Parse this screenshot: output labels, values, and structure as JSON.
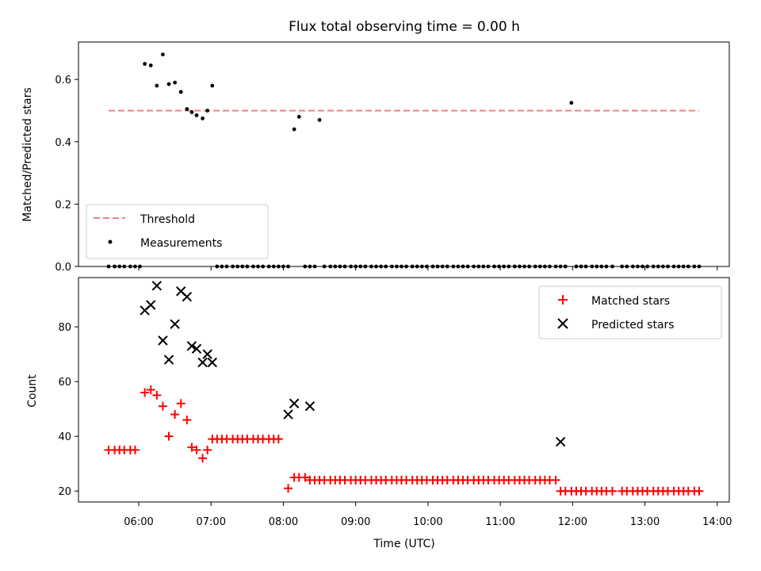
{
  "chart_data": [
    {
      "type": "scatter",
      "title": "Flux total observing time = 0.00 h",
      "xlabel": "",
      "ylabel": "Matched/Predicted stars",
      "ylim": [
        0,
        0.72
      ],
      "yticks": [
        "0.0",
        "0.2",
        "0.4",
        "0.6"
      ],
      "legend": {
        "placement": "lower-left"
      },
      "series": [
        {
          "name": "Threshold",
          "kind": "dashed-line",
          "color": "#f08080",
          "x": [
            "05:35",
            "13:45"
          ],
          "y": [
            0.5,
            0.5
          ]
        },
        {
          "name": "Measurements",
          "kind": "dots",
          "color": "#000000",
          "x": [
            "05:35",
            "05:40",
            "05:44",
            "05:48",
            "05:53",
            "05:57",
            "06:01",
            "06:05",
            "06:10",
            "06:15",
            "06:20",
            "06:25",
            "06:30",
            "06:35",
            "06:40",
            "06:44",
            "06:48",
            "06:53",
            "06:57",
            "07:01",
            "07:05",
            "07:09",
            "07:13",
            "07:18",
            "07:22",
            "07:26",
            "07:30",
            "07:35",
            "07:39",
            "07:43",
            "07:48",
            "07:52",
            "07:56",
            "08:00",
            "08:04",
            "08:09",
            "08:13",
            "08:18",
            "08:22",
            "08:26",
            "08:30",
            "08:34",
            "08:39",
            "08:43",
            "08:47",
            "08:51",
            "08:56",
            "09:00",
            "09:04",
            "09:08",
            "09:13",
            "09:17",
            "09:21",
            "09:25",
            "09:30",
            "09:34",
            "09:38",
            "09:42",
            "09:47",
            "09:51",
            "09:55",
            "09:59",
            "10:04",
            "10:08",
            "10:12",
            "10:16",
            "10:21",
            "10:25",
            "10:29",
            "10:33",
            "10:38",
            "10:42",
            "10:46",
            "10:50",
            "10:55",
            "10:59",
            "11:03",
            "11:07",
            "11:12",
            "11:16",
            "11:20",
            "11:24",
            "11:29",
            "11:33",
            "11:37",
            "11:41",
            "11:46",
            "11:50",
            "11:54",
            "11:59",
            "12:03",
            "12:07",
            "12:11",
            "12:16",
            "12:20",
            "12:24",
            "12:28",
            "12:33",
            "12:41",
            "12:45",
            "12:50",
            "12:54",
            "12:58",
            "13:02",
            "13:07",
            "13:11",
            "13:15",
            "13:19",
            "13:24",
            "13:28",
            "13:32",
            "13:36",
            "13:41",
            "13:45"
          ],
          "y": [
            0,
            0,
            0,
            0,
            0,
            0,
            0,
            0.65,
            0.645,
            0.58,
            0.68,
            0.585,
            0.59,
            0.56,
            0.505,
            0.495,
            0.485,
            0.475,
            0.5,
            0.58,
            0,
            0,
            0,
            0,
            0,
            0,
            0,
            0,
            0,
            0,
            0,
            0,
            0,
            0,
            0,
            0.44,
            0.48,
            0,
            0,
            0,
            0.47,
            0,
            0,
            0,
            0,
            0,
            0,
            0,
            0,
            0,
            0,
            0,
            0,
            0,
            0,
            0,
            0,
            0,
            0,
            0,
            0,
            0,
            0,
            0,
            0,
            0,
            0,
            0,
            0,
            0,
            0,
            0,
            0,
            0,
            0,
            0,
            0,
            0,
            0,
            0,
            0,
            0,
            0,
            0,
            0,
            0,
            0,
            0,
            0,
            0.525,
            0,
            0,
            0,
            0,
            0,
            0,
            0,
            0,
            0,
            0,
            0,
            0,
            0,
            0,
            0,
            0,
            0,
            0,
            0,
            0,
            0,
            0,
            0,
            0
          ]
        }
      ]
    },
    {
      "type": "scatter",
      "title": "",
      "xlabel": "Time (UTC)",
      "ylabel": "Count",
      "ylim": [
        16,
        98
      ],
      "yticks": [
        "20",
        "40",
        "60",
        "80"
      ],
      "xlim": [
        "05:10",
        "14:10"
      ],
      "xticks": [
        "06:00",
        "07:00",
        "08:00",
        "09:00",
        "10:00",
        "11:00",
        "12:00",
        "13:00",
        "14:00"
      ],
      "legend": {
        "placement": "upper-right"
      },
      "series": [
        {
          "name": "Matched stars",
          "marker": "plus",
          "color": "#ff0000",
          "x": [
            "05:35",
            "05:40",
            "05:44",
            "05:48",
            "05:53",
            "05:57",
            "06:05",
            "06:10",
            "06:15",
            "06:20",
            "06:25",
            "06:30",
            "06:35",
            "06:40",
            "06:44",
            "06:48",
            "06:53",
            "06:57",
            "07:01",
            "07:05",
            "07:09",
            "07:13",
            "07:18",
            "07:22",
            "07:26",
            "07:30",
            "07:35",
            "07:39",
            "07:43",
            "07:48",
            "07:52",
            "07:56",
            "08:04",
            "08:09",
            "08:13",
            "08:18",
            "08:22",
            "08:26",
            "08:30",
            "08:34",
            "08:39",
            "08:43",
            "08:47",
            "08:51",
            "08:56",
            "09:00",
            "09:04",
            "09:08",
            "09:13",
            "09:17",
            "09:21",
            "09:25",
            "09:30",
            "09:34",
            "09:38",
            "09:42",
            "09:47",
            "09:51",
            "09:55",
            "09:59",
            "10:04",
            "10:08",
            "10:12",
            "10:16",
            "10:21",
            "10:25",
            "10:29",
            "10:33",
            "10:38",
            "10:42",
            "10:46",
            "10:50",
            "10:55",
            "10:59",
            "11:03",
            "11:07",
            "11:12",
            "11:16",
            "11:20",
            "11:24",
            "11:29",
            "11:33",
            "11:37",
            "11:41",
            "11:46",
            "11:50",
            "11:54",
            "11:59",
            "12:03",
            "12:07",
            "12:11",
            "12:16",
            "12:20",
            "12:24",
            "12:28",
            "12:33",
            "12:41",
            "12:45",
            "12:50",
            "12:54",
            "12:58",
            "13:02",
            "13:07",
            "13:11",
            "13:15",
            "13:19",
            "13:24",
            "13:28",
            "13:32",
            "13:36",
            "13:41",
            "13:45"
          ],
          "y": [
            35,
            35,
            35,
            35,
            35,
            35,
            56,
            57,
            55,
            51,
            40,
            48,
            52,
            46,
            36,
            35,
            32,
            35,
            39,
            39,
            39,
            39,
            39,
            39,
            39,
            39,
            39,
            39,
            39,
            39,
            39,
            39,
            21,
            25,
            25,
            25,
            24,
            24,
            24,
            24,
            24,
            24,
            24,
            24,
            24,
            24,
            24,
            24,
            24,
            24,
            24,
            24,
            24,
            24,
            24,
            24,
            24,
            24,
            24,
            24,
            24,
            24,
            24,
            24,
            24,
            24,
            24,
            24,
            24,
            24,
            24,
            24,
            24,
            24,
            24,
            24,
            24,
            24,
            24,
            24,
            24,
            24,
            24,
            24,
            24,
            20,
            20,
            20,
            20,
            20,
            20,
            20,
            20,
            20,
            20,
            20,
            20,
            20,
            20,
            20,
            20,
            20,
            20,
            20,
            20,
            20,
            20,
            20,
            20,
            20,
            20,
            20
          ]
        },
        {
          "name": "Predicted stars",
          "marker": "x",
          "color": "#000000",
          "x": [
            "06:05",
            "06:10",
            "06:15",
            "06:20",
            "06:25",
            "06:30",
            "06:35",
            "06:40",
            "06:44",
            "06:48",
            "06:53",
            "06:57",
            "07:01",
            "08:04",
            "08:09",
            "08:22",
            "11:50"
          ],
          "y": [
            86,
            88,
            95,
            75,
            68,
            81,
            93,
            91,
            73,
            72,
            67,
            70,
            67,
            48,
            52,
            51,
            38
          ]
        }
      ]
    }
  ]
}
